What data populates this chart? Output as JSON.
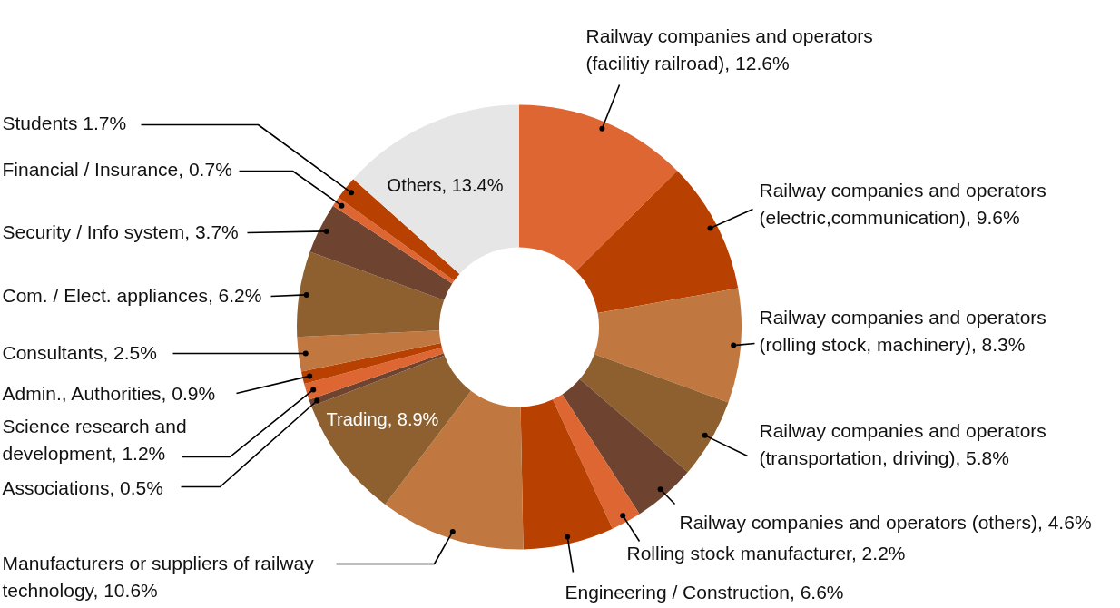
{
  "chart_data": {
    "type": "donut",
    "categories": [
      "Railway companies and operators (facilitiy railroad)",
      "Railway companies and operators (electric,communication)",
      "Railway companies and operators (rolling stock, machinery)",
      "Railway companies and operators (transportation, driving)",
      "Railway companies and operators (others)",
      "Rolling stock manufacturer",
      "Engineering / Construction",
      "Manufacturers or suppliers of railway technology",
      "Trading",
      "Associations",
      "Science research and development",
      "Admin., Authorities",
      "Consultants",
      "Com. / Elect. appliances",
      "Security / Info system",
      "Financial  / Insurance",
      "Students",
      "Others"
    ],
    "values": [
      12.6,
      9.6,
      8.3,
      5.8,
      4.6,
      2.2,
      6.6,
      10.6,
      8.9,
      0.5,
      1.2,
      0.9,
      2.5,
      6.2,
      3.7,
      0.7,
      1.7,
      13.4
    ],
    "value_labels": [
      "12.6%",
      "9.6%",
      "8.3%",
      "5.8%",
      "4.6%",
      "2.2%",
      "6.6%",
      "10.6%",
      "8.9%",
      "0.5%",
      "1.2%",
      "0.9%",
      "2.5%",
      "6.2%",
      "3.7%",
      "0.7%",
      "1.7%",
      "13.4%"
    ],
    "colors": [
      "#dd6633",
      "#b84000",
      "#c07840",
      "#8e6030",
      "#6e4430",
      "#dd6633",
      "#b84000",
      "#c07840",
      "#8e6030",
      "#6e4430",
      "#dd6633",
      "#b84000",
      "#c07840",
      "#8e6030",
      "#6e4430",
      "#dd6633",
      "#b84000",
      "#e6e6e6"
    ]
  }
}
